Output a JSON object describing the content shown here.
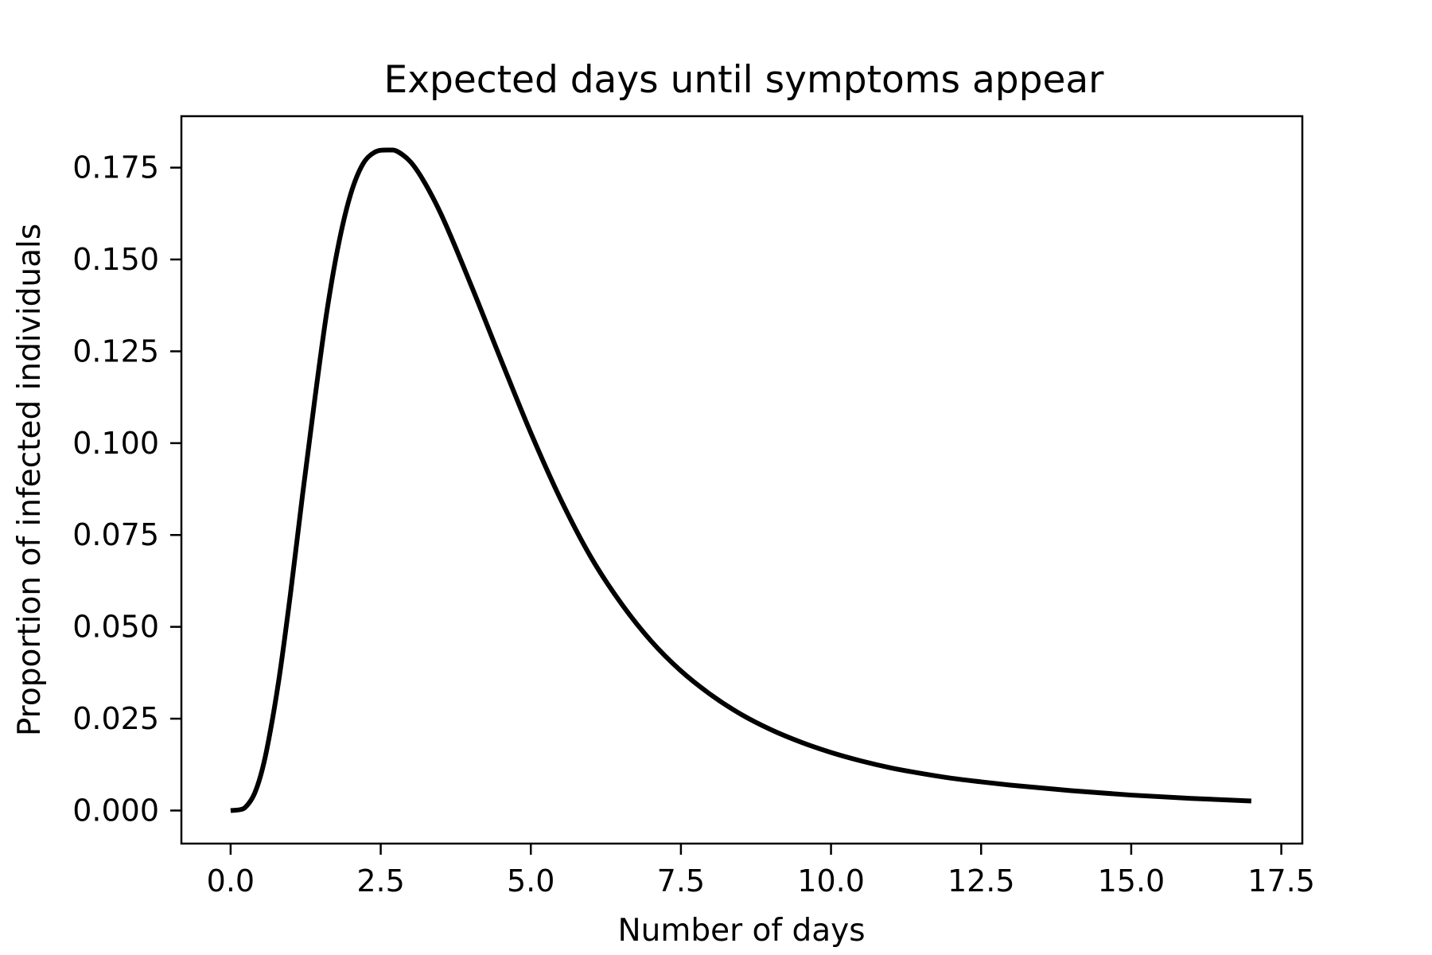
{
  "chart_data": {
    "type": "line",
    "title": "Expected days until symptoms appear",
    "xlabel": "Number of days",
    "ylabel": "Proportion of infected individuals",
    "xlim": [
      -0.82,
      17.85
    ],
    "ylim": [
      -0.009,
      0.189
    ],
    "xticks": [
      0.0,
      2.5,
      5.0,
      7.5,
      10.0,
      12.5,
      15.0,
      17.5
    ],
    "xtick_labels": [
      "0.0",
      "2.5",
      "5.0",
      "7.5",
      "10.0",
      "12.5",
      "15.0",
      "17.5"
    ],
    "yticks": [
      0.0,
      0.025,
      0.05,
      0.075,
      0.1,
      0.125,
      0.15,
      0.175
    ],
    "ytick_labels": [
      "0.000",
      "0.025",
      "0.050",
      "0.075",
      "0.100",
      "0.125",
      "0.150",
      "0.175"
    ],
    "grid": false,
    "legend": "none",
    "line_color": "#000000",
    "series": [
      {
        "x": [
          0.0,
          0.2,
          0.3,
          0.4,
          0.5,
          0.6,
          0.8,
          1.0,
          1.2,
          1.4,
          1.6,
          1.8,
          2.0,
          2.2,
          2.4,
          2.6,
          2.7,
          2.8,
          3.0,
          3.2,
          3.5,
          4.0,
          4.5,
          5.0,
          5.5,
          6.0,
          6.5,
          7.0,
          7.5,
          8.0,
          8.5,
          9.0,
          9.5,
          10.0,
          10.5,
          11.0,
          11.5,
          12.0,
          12.5,
          13.0,
          14.0,
          15.0,
          16.0,
          17.0
        ],
        "y": [
          0.0,
          0.0004,
          0.0019,
          0.0047,
          0.0095,
          0.0164,
          0.0352,
          0.0594,
          0.0862,
          0.1117,
          0.1355,
          0.1543,
          0.1678,
          0.1759,
          0.1792,
          0.1798,
          0.1798,
          0.1792,
          0.1765,
          0.1718,
          0.1625,
          0.1432,
          0.1228,
          0.1028,
          0.0846,
          0.069,
          0.0565,
          0.0462,
          0.038,
          0.0315,
          0.0262,
          0.022,
          0.0186,
          0.0158,
          0.0135,
          0.0116,
          0.0101,
          0.0088,
          0.0078,
          0.0069,
          0.0054,
          0.0042,
          0.0033,
          0.0026
        ]
      }
    ]
  }
}
